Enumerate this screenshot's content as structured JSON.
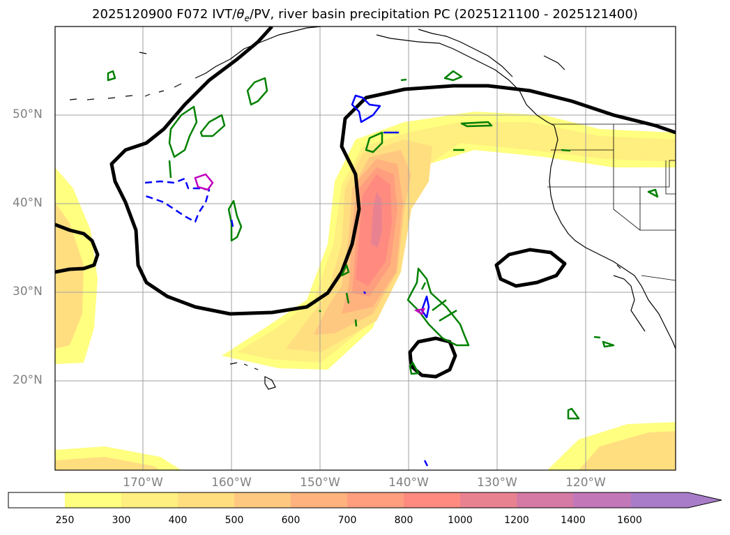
{
  "title": {
    "prefix": "2025120900 F072 IVT/",
    "theta": "θ",
    "sub": "e",
    "suffix": "/PV, river basin precipitation PC (2025121100 - 2025121400)"
  },
  "lat_labels": [
    "50°N",
    "40°N",
    "30°N",
    "20°N"
  ],
  "lon_labels": [
    "170°W",
    "160°W",
    "150°W",
    "140°W",
    "130°W",
    "120°W"
  ],
  "colorbar": {
    "ticks": [
      "250",
      "300",
      "400",
      "500",
      "600",
      "700",
      "800",
      "1000",
      "1200",
      "1400",
      "1600"
    ],
    "colors": [
      "#ffffff",
      "#ffff80",
      "#ffee80",
      "#ffde80",
      "#ffc880",
      "#ffb27e",
      "#ff9e7e",
      "#ff8a80",
      "#e98290",
      "#d47aa4",
      "#c278b8",
      "#a87cc8"
    ]
  },
  "legend_colors": {
    "theta_e_contour": "#000000",
    "pv_contour": "#008000",
    "pv_negative": "#0000ff",
    "pv_high": "#c000c0",
    "coastline": "#000000"
  }
}
